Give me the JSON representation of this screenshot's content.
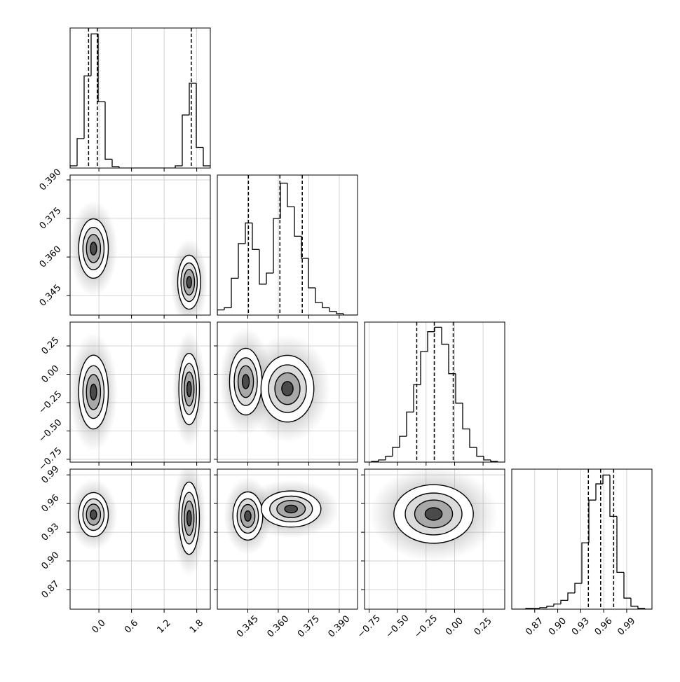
{
  "chart_data": {
    "type": "corner",
    "grid": true,
    "color": "#000000",
    "hist_ylim": [
      0,
      190
    ],
    "params": [
      {
        "xlim": [
          -0.53,
          2.05
        ],
        "ticks": [
          {
            "value": 0,
            "label": "0.0"
          },
          0.6,
          1.2,
          1.8
        ],
        "hist": {
          "bins": [
            -0.53,
            -0.401,
            -0.272,
            -0.143,
            -0.014,
            0.115,
            0.244,
            0.373,
            0.502,
            0.631,
            0.76,
            0.889,
            1.018,
            1.147,
            1.276,
            1.405,
            1.534,
            1.663,
            1.792,
            1.921,
            2.05
          ],
          "counts": [
            3,
            40,
            125,
            182,
            90,
            12,
            2,
            0,
            0,
            0,
            0,
            0,
            0,
            0,
            0,
            3,
            72,
            115,
            28,
            3
          ]
        },
        "quantiles": [
          -0.19,
          -0.03,
          1.7
        ],
        "joint": []
      },
      {
        "xlim": [
          0.33,
          0.399
        ],
        "ylim": [
          0.3374,
          0.3919
        ],
        "ticks": [
          0.345,
          {
            "value": 0.36,
            "label": "0.360"
          },
          0.375,
          {
            "value": 0.39,
            "label": "0.390"
          }
        ],
        "hist": {
          "bins": [
            0.33,
            0.33345,
            0.3369,
            0.34035,
            0.3438,
            0.34725,
            0.3507,
            0.35415,
            0.3576,
            0.36105,
            0.3645,
            0.36795,
            0.3714,
            0.37485,
            0.3783,
            0.38175,
            0.3852,
            0.38865,
            0.3921,
            0.39555,
            0.399
          ],
          "counts": [
            7,
            10,
            50,
            97,
            125,
            89,
            42,
            57,
            131,
            179,
            147,
            107,
            77,
            37,
            17,
            10,
            5,
            2,
            0,
            0
          ]
        },
        "quantiles": [
          0.3453,
          0.3608,
          0.3718
        ],
        "joint": [
          [
            {
              "x": -0.1,
              "y": 0.3633,
              "sx": 0.13,
              "sy": 0.0055
            },
            {
              "x": 1.66,
              "y": 0.3502,
              "sx": 0.1,
              "sy": 0.005
            }
          ]
        ]
      },
      {
        "xlim": [
          -0.79,
          0.44
        ],
        "ylim": [
          -0.775,
          0.46
        ],
        "ticks": [
          {
            "value": -0.75,
            "label": "−0.75"
          },
          {
            "value": -0.5,
            "label": "−0.50"
          },
          {
            "value": -0.25,
            "label": "−0.25"
          },
          {
            "value": 0,
            "label": "0.00"
          },
          0.25
        ],
        "hist": {
          "bins": [
            -0.79,
            -0.7285,
            -0.667,
            -0.6055,
            -0.544,
            -0.4825,
            -0.421,
            -0.3595,
            -0.298,
            -0.2365,
            -0.175,
            -0.1135,
            -0.052,
            0.0095,
            0.071,
            0.1325,
            0.194,
            0.2555,
            0.317,
            0.3785,
            0.44
          ],
          "counts": [
            0,
            1,
            3,
            8,
            20,
            35,
            68,
            105,
            150,
            177,
            183,
            160,
            120,
            80,
            45,
            20,
            8,
            3,
            1,
            0
          ]
        },
        "quantiles": [
          -0.332,
          -0.178,
          -0.012
        ],
        "joint": [
          [
            {
              "x": -0.1,
              "y": -0.157,
              "sx": 0.13,
              "sy": 0.155
            },
            {
              "x": 1.66,
              "y": -0.13,
              "sx": 0.09,
              "sy": 0.15
            }
          ],
          [
            {
              "x": 0.344,
              "y": -0.065,
              "sx": 0.0038,
              "sy": 0.14
            },
            {
              "x": 0.3645,
              "y": -0.127,
              "sx": 0.0062,
              "sy": 0.14
            }
          ]
        ]
      },
      {
        "xlim": [
          0.84,
          1.023
        ],
        "ylim": [
          0.8495,
          0.996
        ],
        "ticks": [
          0.87,
          {
            "value": 0.9,
            "label": "0.90"
          },
          0.93,
          0.96,
          0.99
        ],
        "hist": {
          "bins": [
            0.84,
            0.84915,
            0.8583,
            0.86745,
            0.8766,
            0.88575,
            0.8949,
            0.90405,
            0.9132,
            0.92235,
            0.9315,
            0.94065,
            0.9498,
            0.95895,
            0.9681,
            0.97725,
            0.9864,
            0.99555,
            1.0047,
            1.01385,
            1.023
          ],
          "counts": [
            0,
            0,
            1,
            1,
            2,
            4,
            7,
            12,
            22,
            35,
            90,
            148,
            170,
            182,
            126,
            50,
            15,
            4,
            1,
            0
          ]
        },
        "quantiles": [
          0.94,
          0.956,
          0.973
        ],
        "joint": [
          [
            {
              "x": -0.1,
              "y": 0.9484,
              "sx": 0.13,
              "sy": 0.011
            },
            {
              "x": 1.66,
              "y": 0.9447,
              "sx": 0.09,
              "sy": 0.018
            }
          ],
          [
            {
              "x": 0.345,
              "y": 0.947,
              "sx": 0.0035,
              "sy": 0.012
            },
            {
              "x": 0.3663,
              "y": 0.9543,
              "sx": 0.007,
              "sy": 0.009
            }
          ],
          [
            {
              "x": -0.184,
              "y": 0.9491,
              "sx": 0.166,
              "sy": 0.0146
            }
          ]
        ]
      }
    ]
  }
}
